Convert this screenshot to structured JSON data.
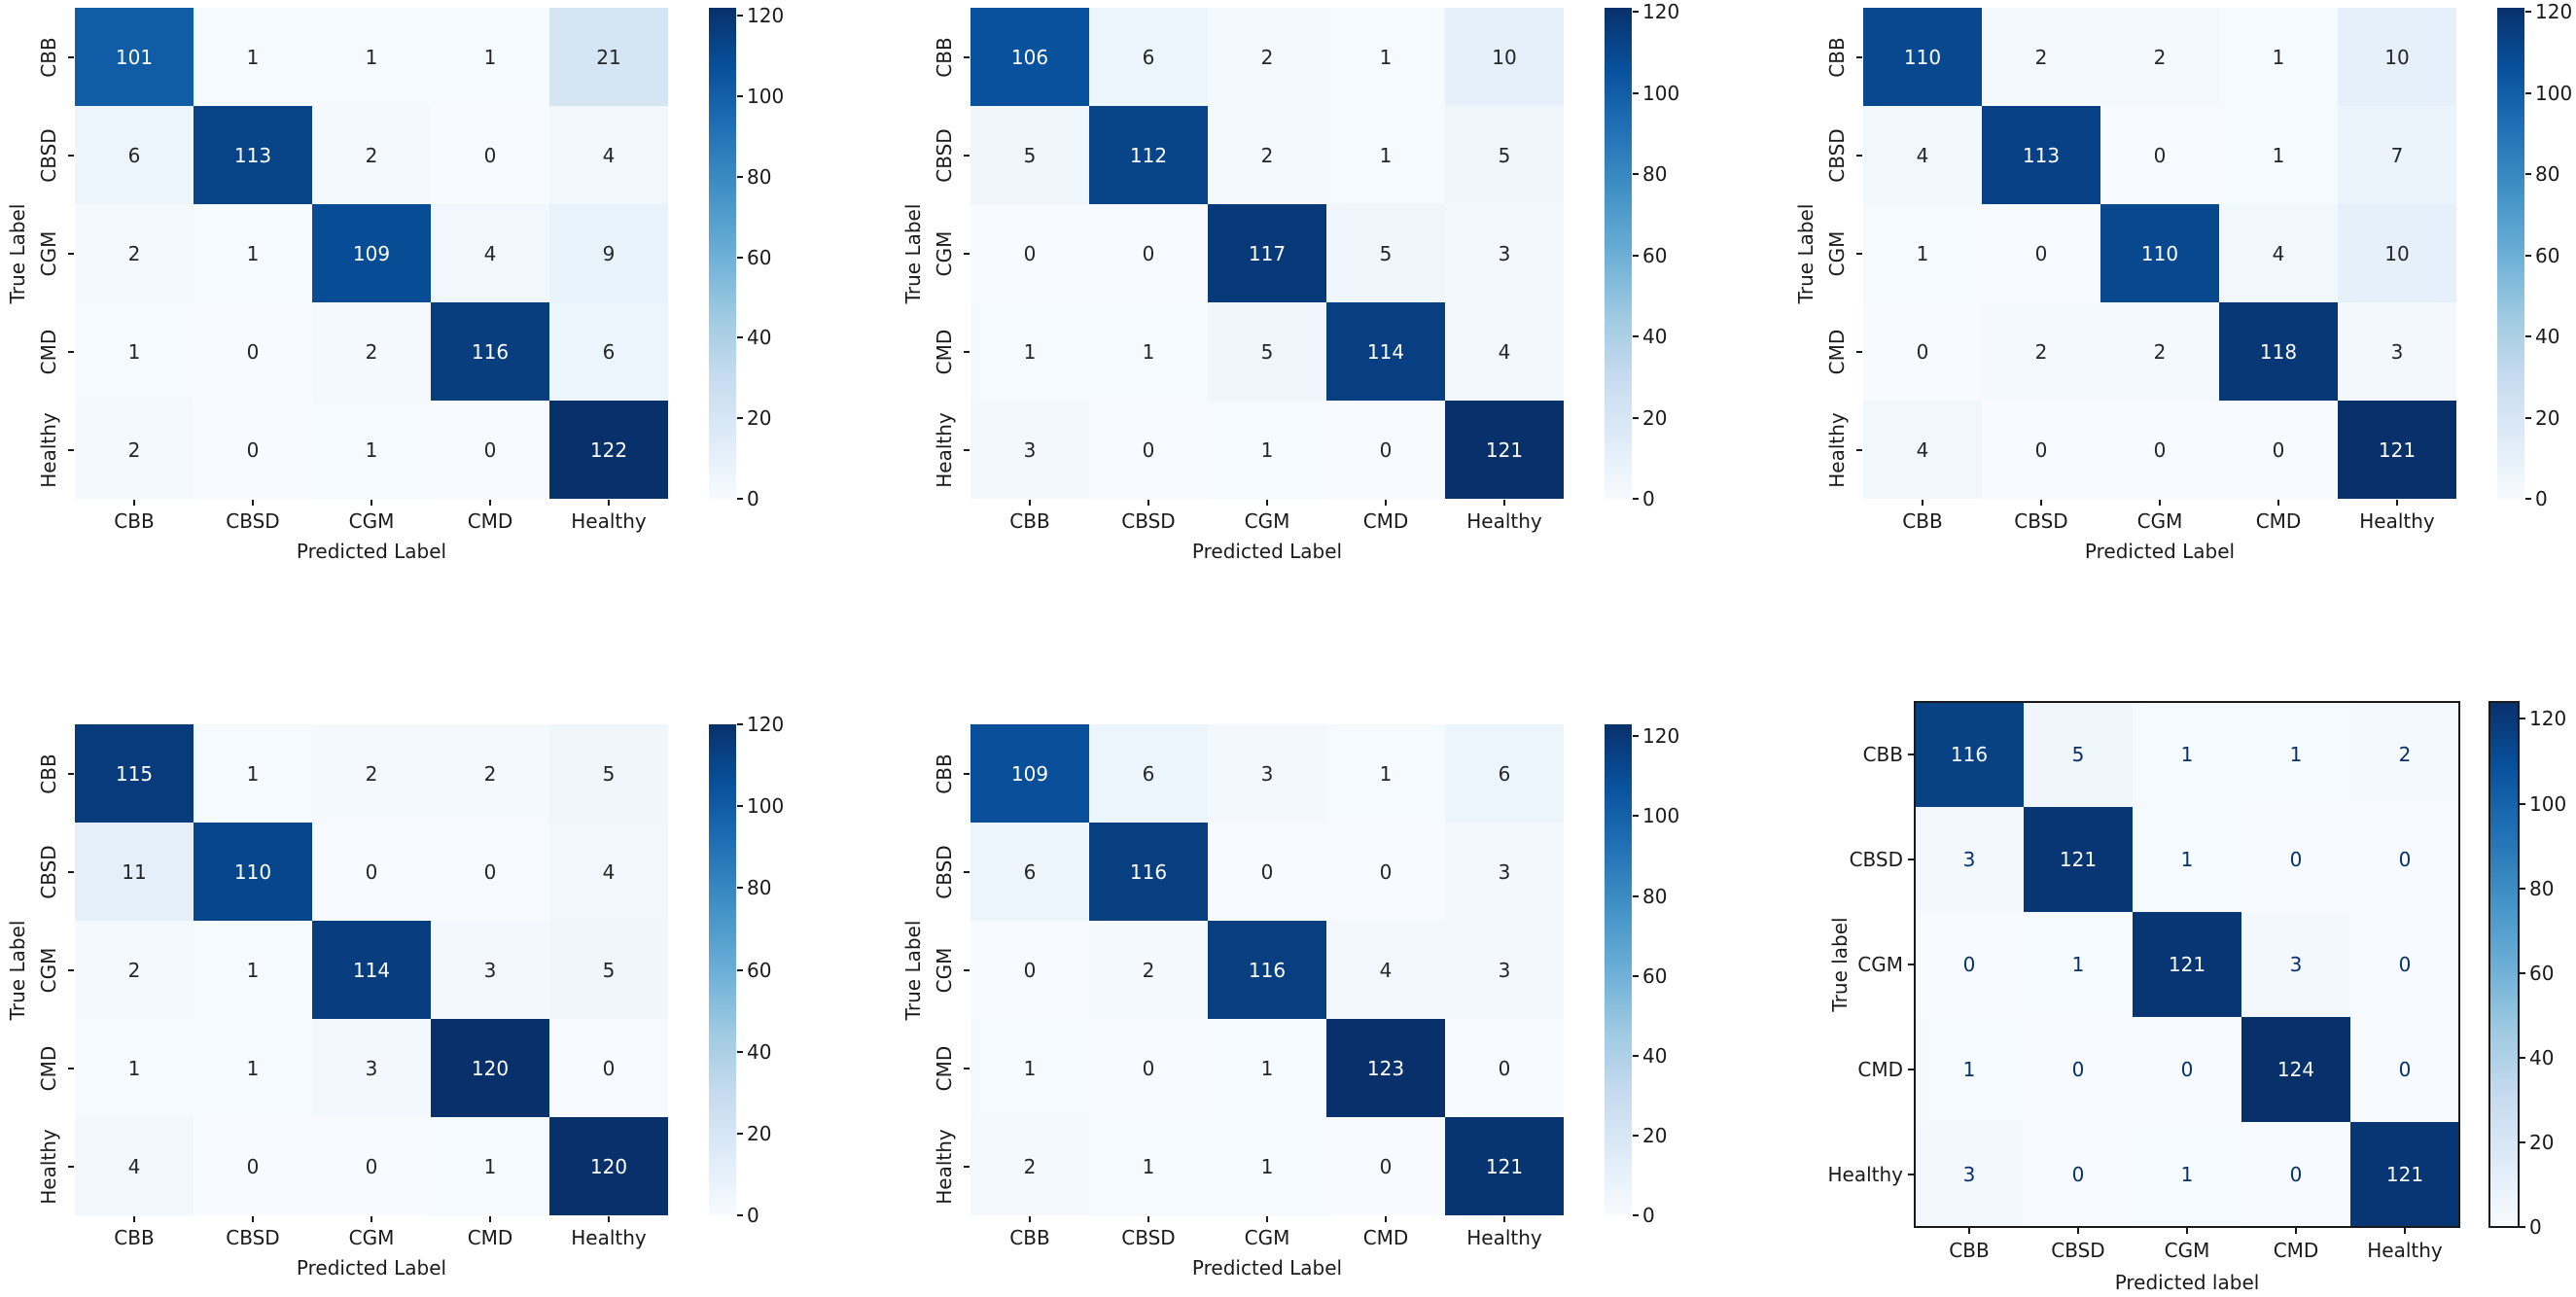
{
  "chart_data": [
    {
      "type": "heatmap",
      "style": "seaborn",
      "colormap": "Blues",
      "xlabel": "Predicted Label",
      "ylabel": "True Label",
      "classes": [
        "CBB",
        "CBSD",
        "CGM",
        "CMD",
        "Healthy"
      ],
      "matrix": [
        [
          101,
          1,
          1,
          1,
          21
        ],
        [
          6,
          113,
          2,
          0,
          4
        ],
        [
          2,
          1,
          109,
          4,
          9
        ],
        [
          1,
          0,
          2,
          116,
          6
        ],
        [
          2,
          0,
          1,
          0,
          122
        ]
      ],
      "vmin": 0,
      "vmax": 122,
      "colorbar_ticks": [
        0,
        20,
        40,
        60,
        80,
        100,
        120
      ]
    },
    {
      "type": "heatmap",
      "style": "seaborn",
      "colormap": "Blues",
      "xlabel": "Predicted Label",
      "ylabel": "True Label",
      "classes": [
        "CBB",
        "CBSD",
        "CGM",
        "CMD",
        "Healthy"
      ],
      "matrix": [
        [
          106,
          6,
          2,
          1,
          10
        ],
        [
          5,
          112,
          2,
          1,
          5
        ],
        [
          0,
          0,
          117,
          5,
          3
        ],
        [
          1,
          1,
          5,
          114,
          4
        ],
        [
          3,
          0,
          1,
          0,
          121
        ]
      ],
      "vmin": 0,
      "vmax": 121,
      "colorbar_ticks": [
        0,
        20,
        40,
        60,
        80,
        100,
        120
      ]
    },
    {
      "type": "heatmap",
      "style": "seaborn",
      "colormap": "Blues",
      "xlabel": "Predicted Label",
      "ylabel": "True Label",
      "classes": [
        "CBB",
        "CBSD",
        "CGM",
        "CMD",
        "Healthy"
      ],
      "matrix": [
        [
          110,
          2,
          2,
          1,
          10
        ],
        [
          4,
          113,
          0,
          1,
          7
        ],
        [
          1,
          0,
          110,
          4,
          10
        ],
        [
          0,
          2,
          2,
          118,
          3
        ],
        [
          4,
          0,
          0,
          0,
          121
        ]
      ],
      "vmin": 0,
      "vmax": 121,
      "colorbar_ticks": [
        0,
        20,
        40,
        60,
        80,
        100,
        120
      ]
    },
    {
      "type": "heatmap",
      "style": "seaborn",
      "colormap": "Blues",
      "xlabel": "Predicted Label",
      "ylabel": "True Label",
      "classes": [
        "CBB",
        "CBSD",
        "CGM",
        "CMD",
        "Healthy"
      ],
      "matrix": [
        [
          115,
          1,
          2,
          2,
          5
        ],
        [
          11,
          110,
          0,
          0,
          4
        ],
        [
          2,
          1,
          114,
          3,
          5
        ],
        [
          1,
          1,
          3,
          120,
          0
        ],
        [
          4,
          0,
          0,
          1,
          120
        ]
      ],
      "vmin": 0,
      "vmax": 120,
      "colorbar_ticks": [
        0,
        20,
        40,
        60,
        80,
        100,
        120
      ]
    },
    {
      "type": "heatmap",
      "style": "seaborn",
      "colormap": "Blues",
      "xlabel": "Predicted Label",
      "ylabel": "True Label",
      "classes": [
        "CBB",
        "CBSD",
        "CGM",
        "CMD",
        "Healthy"
      ],
      "matrix": [
        [
          109,
          6,
          3,
          1,
          6
        ],
        [
          6,
          116,
          0,
          0,
          3
        ],
        [
          0,
          2,
          116,
          4,
          3
        ],
        [
          1,
          0,
          1,
          123,
          0
        ],
        [
          2,
          1,
          1,
          0,
          121
        ]
      ],
      "vmin": 0,
      "vmax": 123,
      "colorbar_ticks": [
        0,
        20,
        40,
        60,
        80,
        100,
        120
      ]
    },
    {
      "type": "heatmap",
      "style": "sklearn",
      "colormap": "Blues",
      "xlabel": "Predicted label",
      "ylabel": "True label",
      "classes": [
        "CBB",
        "CBSD",
        "CGM",
        "CMD",
        "Healthy"
      ],
      "matrix": [
        [
          116,
          5,
          1,
          1,
          2
        ],
        [
          3,
          121,
          1,
          0,
          0
        ],
        [
          0,
          1,
          121,
          3,
          0
        ],
        [
          1,
          0,
          0,
          124,
          0
        ],
        [
          3,
          0,
          1,
          0,
          121
        ]
      ],
      "vmin": 0,
      "vmax": 124,
      "colorbar_ticks": [
        0,
        20,
        40,
        60,
        80,
        100,
        120
      ]
    }
  ],
  "colors": {
    "background": "#ffffff",
    "axis_text": "#1a1a1a",
    "colormap_stops": [
      "#f7fbff",
      "#deebf7",
      "#c6dbef",
      "#9ecae1",
      "#6baed6",
      "#4292c6",
      "#2171b5",
      "#08519c",
      "#08306b"
    ],
    "seaborn_dark_text": "#262626",
    "seaborn_light_text": "#ffffff",
    "sklearn_dark_text": "#08306b",
    "sklearn_light_text": "#f7fbff"
  }
}
